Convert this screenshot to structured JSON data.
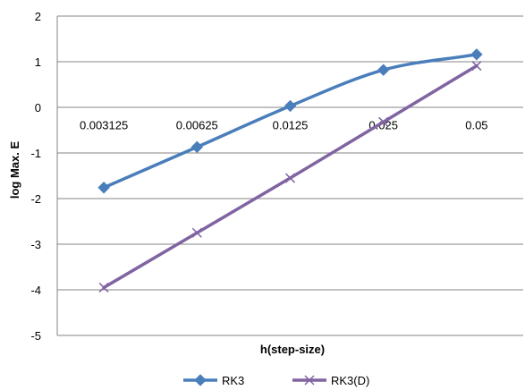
{
  "chart_data": {
    "type": "line",
    "title": "",
    "xlabel": "h(step-size)",
    "ylabel": "log Max. E",
    "categories": [
      "0.003125",
      "0.00625",
      "0.0125",
      "0.025",
      "0.05"
    ],
    "y_ticks": [
      "2",
      "1",
      "0",
      "-1",
      "-2",
      "-3",
      "-4",
      "-5"
    ],
    "ylim": [
      -5,
      2
    ],
    "grid": "horizontal",
    "legend_position": "bottom",
    "series": [
      {
        "name": "RK3",
        "color": "#4a7ebb",
        "marker": "diamond",
        "values": [
          -1.76,
          -0.87,
          0.03,
          0.82,
          1.16
        ]
      },
      {
        "name": "RK3(D)",
        "color": "#8064a2",
        "marker": "x",
        "values": [
          -3.95,
          -2.75,
          -1.55,
          -0.32,
          0.91
        ]
      }
    ]
  }
}
